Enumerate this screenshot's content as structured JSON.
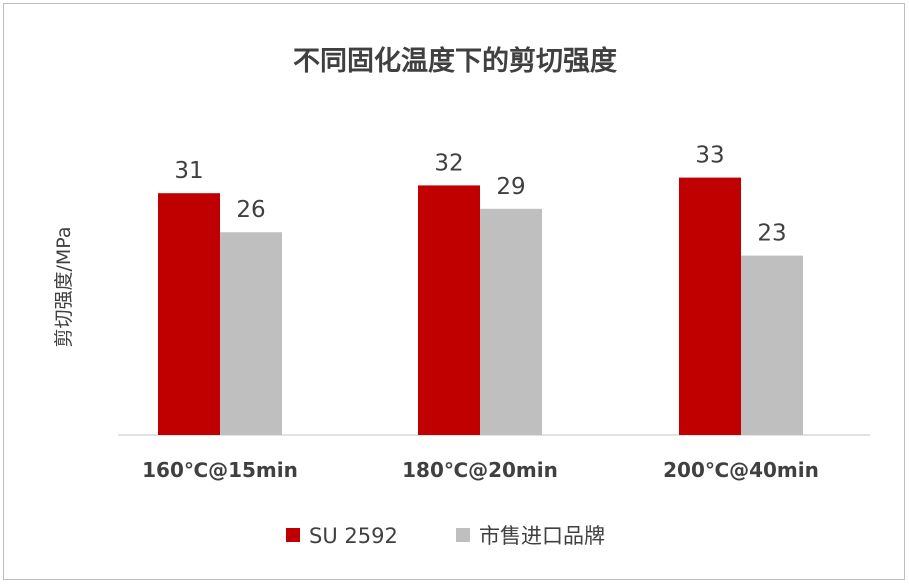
{
  "chart_data": {
    "type": "bar",
    "title": "不同固化温度下的剪切强度",
    "xlabel": "",
    "ylabel": "剪切强度/MPa",
    "categories": [
      "160℃@15min",
      "180℃@20min",
      "200℃@40min"
    ],
    "series": [
      {
        "name": "SU 2592",
        "values": [
          31,
          32,
          33
        ],
        "color": "#c00000"
      },
      {
        "name": "市售进口品牌",
        "values": [
          26,
          29,
          23
        ],
        "color": "#bfbfbf"
      }
    ],
    "ylim": [
      0,
      35
    ],
    "grid": false,
    "legend": "bottom"
  }
}
